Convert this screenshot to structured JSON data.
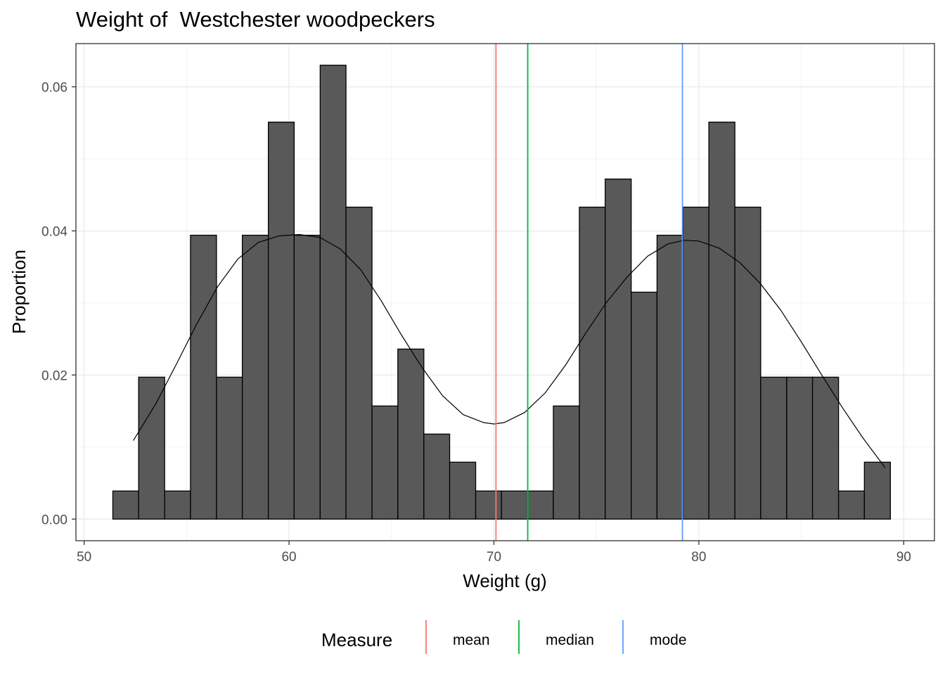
{
  "chart_data": {
    "type": "bar",
    "title": "Weight of  Westchester woodpeckers",
    "xlabel": "Weight (g)",
    "ylabel": "Proportion",
    "xlim": [
      49.6,
      91.5
    ],
    "ylim": [
      -0.003,
      0.066
    ],
    "x_ticks": [
      50,
      60,
      70,
      80,
      90
    ],
    "x_tick_labels": [
      "50",
      "60",
      "70",
      "80",
      "90"
    ],
    "y_ticks": [
      0.0,
      0.02,
      0.04,
      0.06
    ],
    "y_tick_labels": [
      "0.00",
      "0.02",
      "0.04",
      "0.06"
    ],
    "grid": true,
    "bar_fill": "#595959",
    "bins": [
      {
        "x0": 51.4,
        "x1": 52.66,
        "value": 0.0039
      },
      {
        "x0": 52.66,
        "x1": 53.93,
        "value": 0.0197
      },
      {
        "x0": 53.93,
        "x1": 55.19,
        "value": 0.0039
      },
      {
        "x0": 55.19,
        "x1": 56.46,
        "value": 0.0394
      },
      {
        "x0": 56.46,
        "x1": 57.72,
        "value": 0.0197
      },
      {
        "x0": 57.72,
        "x1": 58.99,
        "value": 0.0394
      },
      {
        "x0": 58.99,
        "x1": 60.25,
        "value": 0.0551
      },
      {
        "x0": 60.25,
        "x1": 61.52,
        "value": 0.0394
      },
      {
        "x0": 61.52,
        "x1": 62.78,
        "value": 0.063
      },
      {
        "x0": 62.78,
        "x1": 64.05,
        "value": 0.0433
      },
      {
        "x0": 64.05,
        "x1": 65.31,
        "value": 0.0157
      },
      {
        "x0": 65.31,
        "x1": 66.58,
        "value": 0.0236
      },
      {
        "x0": 66.58,
        "x1": 67.84,
        "value": 0.0118
      },
      {
        "x0": 67.84,
        "x1": 69.11,
        "value": 0.0079
      },
      {
        "x0": 69.11,
        "x1": 70.37,
        "value": 0.0039
      },
      {
        "x0": 70.37,
        "x1": 71.64,
        "value": 0.0039
      },
      {
        "x0": 71.64,
        "x1": 72.9,
        "value": 0.0039
      },
      {
        "x0": 72.9,
        "x1": 74.17,
        "value": 0.0157
      },
      {
        "x0": 74.17,
        "x1": 75.43,
        "value": 0.0433
      },
      {
        "x0": 75.43,
        "x1": 76.7,
        "value": 0.0472
      },
      {
        "x0": 76.7,
        "x1": 77.96,
        "value": 0.0315
      },
      {
        "x0": 77.96,
        "x1": 79.23,
        "value": 0.0394
      },
      {
        "x0": 79.23,
        "x1": 80.49,
        "value": 0.0433
      },
      {
        "x0": 80.49,
        "x1": 81.76,
        "value": 0.0551
      },
      {
        "x0": 81.76,
        "x1": 83.02,
        "value": 0.0433
      },
      {
        "x0": 83.02,
        "x1": 84.29,
        "value": 0.0197
      },
      {
        "x0": 84.29,
        "x1": 85.55,
        "value": 0.0197
      },
      {
        "x0": 85.55,
        "x1": 86.82,
        "value": 0.0197
      },
      {
        "x0": 86.82,
        "x1": 88.08,
        "value": 0.0039
      },
      {
        "x0": 88.08,
        "x1": 89.35,
        "value": 0.0079
      }
    ],
    "density_curve": {
      "x": [
        52.4,
        53.5,
        54.5,
        55.5,
        56.5,
        57.5,
        58.5,
        59.5,
        60.5,
        61.5,
        62.5,
        63.5,
        64.5,
        65.5,
        66.5,
        67.5,
        68.5,
        69.5,
        70.0,
        70.5,
        71.5,
        72.5,
        73.5,
        74.5,
        75.5,
        76.5,
        77.5,
        78.5,
        79.3,
        80.0,
        81.0,
        82.0,
        83.0,
        84.0,
        85.0,
        86.0,
        87.0,
        88.0,
        89.1
      ],
      "y": [
        0.0109,
        0.016,
        0.0215,
        0.0271,
        0.0322,
        0.0361,
        0.0384,
        0.0393,
        0.0395,
        0.0391,
        0.0375,
        0.0346,
        0.0303,
        0.0255,
        0.021,
        0.0171,
        0.0145,
        0.0134,
        0.0132,
        0.0134,
        0.0148,
        0.0175,
        0.0214,
        0.0259,
        0.0301,
        0.0336,
        0.0365,
        0.0382,
        0.0387,
        0.0386,
        0.0376,
        0.0356,
        0.0327,
        0.029,
        0.0246,
        0.02,
        0.0155,
        0.0113,
        0.0071
      ]
    },
    "reference_lines": [
      {
        "name": "mean",
        "x": 70.1,
        "color": "#F8766D"
      },
      {
        "name": "median",
        "x": 71.65,
        "color": "#00BA38"
      },
      {
        "name": "mode",
        "x": 79.2,
        "color": "#619CFF"
      }
    ],
    "legend": {
      "title": "Measure",
      "position": "bottom",
      "items": [
        "mean",
        "median",
        "mode"
      ]
    }
  }
}
